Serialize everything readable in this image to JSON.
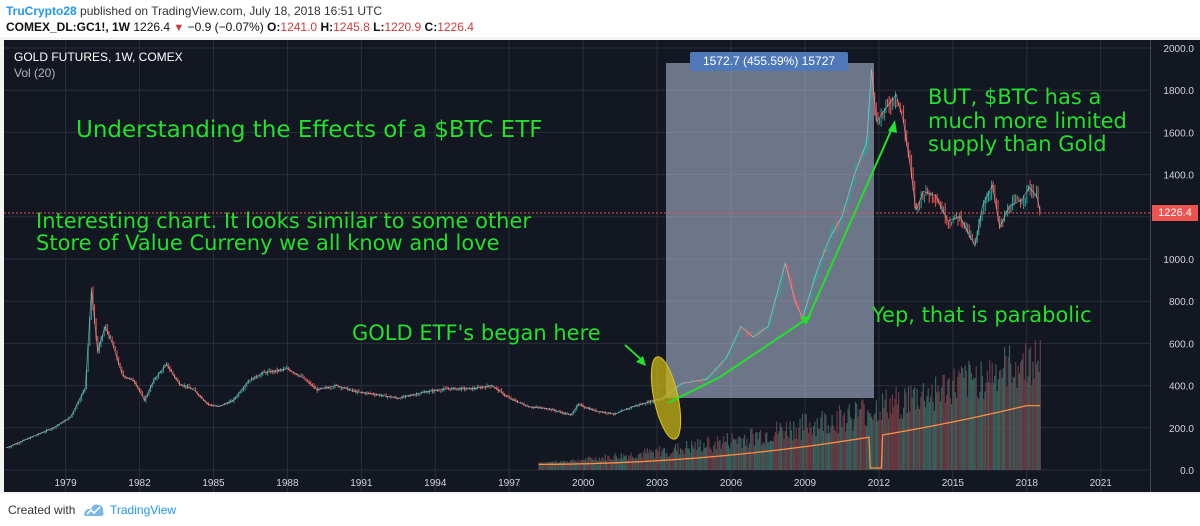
{
  "header": {
    "user": "TruCrypto28",
    "published": "published on TradingView.com, July 18, 2018 16:51 UTC",
    "symbol": "COMEX_DL:GC1!, 1W",
    "last": "1226.4",
    "down_arrow": "▼",
    "change": "−0.9 (−0.07%)",
    "o_label": "O:",
    "o_value": "1241.0",
    "h_label": "H:",
    "h_value": "1245.8",
    "l_label": "L:",
    "l_value": "1220.9",
    "c_label": "C:",
    "c_value": "1226.4"
  },
  "legend": {
    "title": "GOLD FUTURES, 1W, COMEX",
    "vol": "Vol (20)"
  },
  "annotations": {
    "title": "Understanding the Effects of a $BTC ETF",
    "interesting": "Interesting chart. It looks similar to some other\nStore of Value Curreny we all know and love",
    "etf": "GOLD ETF's began here",
    "btc": "BUT, $BTC has a\nmuch more limited\nsupply than Gold",
    "parabolic": "Yep, that is parabolic",
    "range_measure": "1572.7 (455.59%) 15727"
  },
  "last_price_label": "1226.4",
  "footer": {
    "created": "Created with",
    "brand": "TradingView"
  },
  "colors": {
    "background": "#131722",
    "up": "#26a69a",
    "down": "#ef5350",
    "annotation": "#22e02b",
    "range_box": "#b8c4dc",
    "ellipse": "#c8b414",
    "volume_ma": "#ff8c42"
  },
  "chart_data": {
    "type": "line",
    "title": "GOLD FUTURES, 1W, COMEX",
    "x_ticks": [
      "1979",
      "1982",
      "1985",
      "1988",
      "1991",
      "1994",
      "1997",
      "2000",
      "2003",
      "2006",
      "2009",
      "2012",
      "2015",
      "2018",
      "2021"
    ],
    "y_ticks": [
      "0.0",
      "200.0",
      "400.0",
      "600.0",
      "800.0",
      "1000.0",
      "1200.0",
      "1400.0",
      "1600.0",
      "1800.0",
      "2000.0"
    ],
    "ylim": [
      0,
      2000
    ],
    "xlim": [
      1976.5,
      2023
    ],
    "series": [
      {
        "x": [
          1976.6,
          1977.5,
          1978.5,
          1979.2,
          1979.8,
          1980.05,
          1980.3,
          1980.6,
          1980.9,
          1981.3,
          1981.8,
          1982.2,
          1982.6,
          1983.1,
          1983.6,
          1984.2,
          1984.8,
          1985.2,
          1985.8,
          1986.4,
          1987.0,
          1987.6,
          1988.0,
          1988.6,
          1989.2,
          1990.0,
          1990.8,
          1991.5,
          1992.5,
          1993.6,
          1994.5,
          1995.5,
          1996.3,
          1997.0,
          1997.8,
          1998.6,
          1999.5,
          1999.8,
          2000.5,
          2001.3,
          2002.0,
          2002.6,
          2003.2,
          2004.0,
          2005.0,
          2005.8,
          2006.4,
          2006.9,
          2007.5,
          2008.2,
          2008.6,
          2008.9,
          2009.5,
          2010.0,
          2010.5,
          2011.0,
          2011.5,
          2011.7,
          2011.9,
          2012.2,
          2012.7,
          2013.0,
          2013.3,
          2013.5,
          2013.8,
          2014.3,
          2014.8,
          2015.3,
          2015.9,
          2016.2,
          2016.6,
          2016.9,
          2017.3,
          2017.8,
          2018.1,
          2018.4,
          2018.55
        ],
        "values": [
          105,
          150,
          200,
          250,
          390,
          850,
          560,
          680,
          600,
          450,
          420,
          330,
          430,
          500,
          410,
          380,
          310,
          300,
          330,
          420,
          460,
          470,
          480,
          440,
          380,
          400,
          370,
          360,
          340,
          370,
          385,
          385,
          400,
          340,
          300,
          290,
          260,
          310,
          280,
          265,
          300,
          320,
          340,
          410,
          430,
          530,
          680,
          630,
          680,
          980,
          800,
          720,
          950,
          1100,
          1200,
          1400,
          1550,
          1900,
          1650,
          1700,
          1780,
          1650,
          1420,
          1230,
          1320,
          1300,
          1180,
          1200,
          1060,
          1250,
          1350,
          1150,
          1250,
          1280,
          1340,
          1300,
          1226
        ]
      }
    ]
  }
}
